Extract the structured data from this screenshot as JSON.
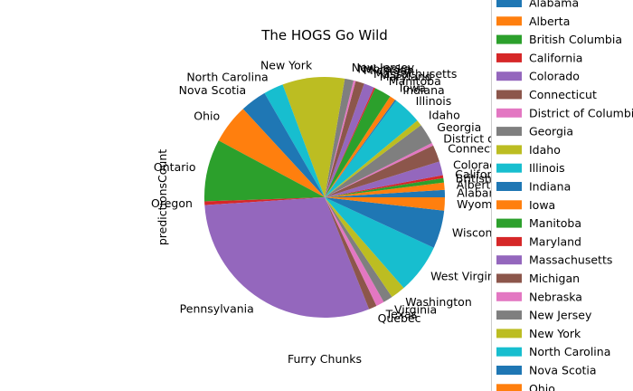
{
  "chart_data": {
    "type": "pie",
    "title": "The HOGS Go Wild",
    "xlabel": "Furry Chunks",
    "ylabel": "predictionsCount",
    "legend_position": "right",
    "slices": [
      {
        "label": "Alabama",
        "value": 1.0,
        "color": "#1f77b4"
      },
      {
        "label": "Alberta",
        "value": 1.0,
        "color": "#ff7f0e"
      },
      {
        "label": "British Columbia",
        "value": 0.6,
        "color": "#2ca02c"
      },
      {
        "label": "California",
        "value": 0.4,
        "color": "#d62728"
      },
      {
        "label": "Colorado",
        "value": 1.9,
        "color": "#9467bd"
      },
      {
        "label": "Connecticut",
        "value": 2.3,
        "color": "#8c564b"
      },
      {
        "label": "District of Columbia",
        "value": 0.4,
        "color": "#e377c2"
      },
      {
        "label": "Georgia",
        "value": 2.8,
        "color": "#7f7f7f"
      },
      {
        "label": "Idaho",
        "value": 0.8,
        "color": "#bcbd22"
      },
      {
        "label": "Illinois",
        "value": 3.9,
        "color": "#17becf"
      },
      {
        "label": "Indiana",
        "value": 0.2,
        "color": "#1f77b4"
      },
      {
        "label": "Iowa",
        "value": 0.8,
        "color": "#ff7f0e"
      },
      {
        "label": "Manitoba",
        "value": 2.3,
        "color": "#2ca02c"
      },
      {
        "label": "Maryland",
        "value": 0.2,
        "color": "#d62728"
      },
      {
        "label": "Massachusetts",
        "value": 1.4,
        "color": "#9467bd"
      },
      {
        "label": "Michigan",
        "value": 1.2,
        "color": "#8c564b"
      },
      {
        "label": "Nebraska",
        "value": 0.3,
        "color": "#e377c2"
      },
      {
        "label": "New Jersey",
        "value": 1.2,
        "color": "#7f7f7f"
      },
      {
        "label": "New York",
        "value": 8.5,
        "color": "#bcbd22"
      },
      {
        "label": "North Carolina",
        "value": 2.7,
        "color": "#17becf"
      },
      {
        "label": "Nova Scotia",
        "value": 3.6,
        "color": "#1f77b4"
      },
      {
        "label": "Ohio",
        "value": 5.4,
        "color": "#ff7f0e"
      },
      {
        "label": "Ontario",
        "value": 8.5,
        "color": "#2ca02c"
      },
      {
        "label": "Oregon",
        "value": 0.5,
        "color": "#d62728"
      },
      {
        "label": "Pennsylvania",
        "value": 30.5,
        "color": "#9467bd"
      },
      {
        "label": "Quebec",
        "value": 1.1,
        "color": "#8c564b"
      },
      {
        "label": "Texas",
        "value": 1.1,
        "color": "#e377c2"
      },
      {
        "label": "Virginia",
        "value": 1.3,
        "color": "#7f7f7f"
      },
      {
        "label": "Washington",
        "value": 2.0,
        "color": "#bcbd22"
      },
      {
        "label": "West Virginia",
        "value": 6.8,
        "color": "#17becf"
      },
      {
        "label": "Wisconsin",
        "value": 5.2,
        "color": "#1f77b4"
      },
      {
        "label": "Wyoming",
        "value": 1.8,
        "color": "#ff7f0e"
      }
    ],
    "legend_visible": [
      "Alabama",
      "Alberta",
      "British Columbia",
      "California",
      "Colorado",
      "Connecticut",
      "District of Columbia",
      "Georgia",
      "Idaho",
      "Illinois",
      "Indiana",
      "Iowa",
      "Manitoba",
      "Maryland",
      "Massachusetts",
      "Michigan",
      "Nebraska",
      "New Jersey",
      "New York",
      "North Carolina",
      "Nova Scotia",
      "Ohio"
    ]
  }
}
